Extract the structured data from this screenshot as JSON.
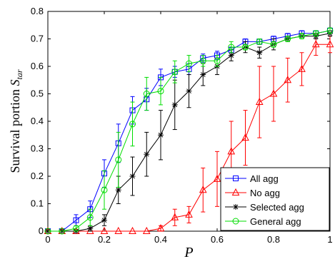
{
  "chart_data": {
    "type": "line",
    "xlabel": "P",
    "ylabel_text": "Survival portion ",
    "ylabel_var": "S",
    "ylabel_sub": "tar",
    "xlim": [
      0,
      1
    ],
    "ylim": [
      0,
      0.8
    ],
    "xticks": [
      "0",
      "0.2",
      "0.4",
      "0.6",
      "0.8",
      "1"
    ],
    "yticks": [
      "0",
      "0.1",
      "0.2",
      "0.3",
      "0.4",
      "0.5",
      "0.6",
      "0.7",
      "0.8"
    ],
    "grid": false,
    "legend_position": "bottom-right",
    "x": [
      0,
      0.05,
      0.1,
      0.15,
      0.2,
      0.25,
      0.3,
      0.35,
      0.4,
      0.45,
      0.5,
      0.55,
      0.6,
      0.65,
      0.7,
      0.75,
      0.8,
      0.85,
      0.9,
      0.95,
      1.0
    ],
    "series": [
      {
        "name": "All agg",
        "color": "#0000ff",
        "marker": "square",
        "values": [
          0.0,
          0.0,
          0.04,
          0.08,
          0.21,
          0.32,
          0.44,
          0.48,
          0.56,
          0.58,
          0.59,
          0.63,
          0.64,
          0.66,
          0.69,
          0.69,
          0.7,
          0.71,
          0.72,
          0.72,
          0.73
        ],
        "errors": [
          0,
          0,
          0.02,
          0.03,
          0.05,
          0.07,
          0.05,
          0.04,
          0.03,
          0.02,
          0.02,
          0.015,
          0.015,
          0.01,
          0.01,
          0.01,
          0.01,
          0.01,
          0.01,
          0.01,
          0.01
        ]
      },
      {
        "name": "No agg",
        "color": "#ff0000",
        "marker": "triangle",
        "values": [
          0.0,
          0.0,
          0.0,
          0.0,
          0.0,
          0.0,
          0.0,
          0.0,
          0.01,
          0.05,
          0.06,
          0.15,
          0.19,
          0.29,
          0.34,
          0.47,
          0.5,
          0.55,
          0.59,
          0.68,
          0.68
        ],
        "errors": [
          0,
          0,
          0,
          0,
          0,
          0,
          0,
          0,
          0.01,
          0.03,
          0.03,
          0.08,
          0.1,
          0.11,
          0.1,
          0.13,
          0.1,
          0.08,
          0.06,
          0.04,
          0.03
        ]
      },
      {
        "name": "Selected agg",
        "color": "#000000",
        "marker": "star",
        "values": [
          0.0,
          0.0,
          0.0,
          0.01,
          0.04,
          0.15,
          0.2,
          0.28,
          0.35,
          0.46,
          0.51,
          0.57,
          0.6,
          0.64,
          0.67,
          0.65,
          0.68,
          0.7,
          0.71,
          0.71,
          0.72
        ],
        "errors": [
          0,
          0,
          0,
          0.01,
          0.02,
          0.05,
          0.07,
          0.08,
          0.09,
          0.09,
          0.06,
          0.04,
          0.03,
          0.02,
          0.02,
          0.02,
          0.02,
          0.01,
          0.01,
          0.01,
          0.01
        ]
      },
      {
        "name": "General agg",
        "color": "#00dd00",
        "marker": "circle",
        "values": [
          0.0,
          0.0,
          0.01,
          0.05,
          0.15,
          0.26,
          0.39,
          0.5,
          0.51,
          0.58,
          0.61,
          0.62,
          0.62,
          0.67,
          0.67,
          0.69,
          0.68,
          0.7,
          0.71,
          0.72,
          0.73
        ],
        "errors": [
          0,
          0,
          0.01,
          0.03,
          0.07,
          0.1,
          0.08,
          0.06,
          0.05,
          0.04,
          0.03,
          0.02,
          0.02,
          0.02,
          0.01,
          0.01,
          0.01,
          0.01,
          0.01,
          0.01,
          0.01
        ]
      }
    ]
  }
}
